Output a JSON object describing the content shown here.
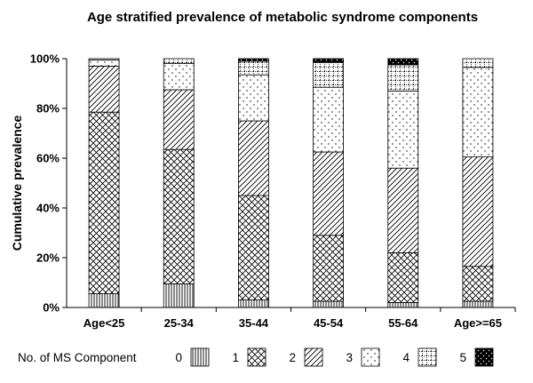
{
  "chart_data": {
    "type": "bar",
    "stacked": true,
    "title": "Age stratified prevalence of metabolic syndrome components",
    "ylabel": "Cumulative prevalence",
    "xlabel": "",
    "ylim": [
      0,
      100
    ],
    "yticks": [
      "0%",
      "20%",
      "40%",
      "60%",
      "80%",
      "100%"
    ],
    "ytick_values": [
      0,
      20,
      40,
      60,
      80,
      100
    ],
    "categories": [
      "Age<25",
      "25-34",
      "35-44",
      "45-54",
      "55-64",
      "Age>=65"
    ],
    "legend_title": "No. of MS Component",
    "legend_position": "bottom",
    "series": [
      {
        "name": "0",
        "pattern": "vertical-lines",
        "values": [
          5.5,
          9.5,
          3,
          2.5,
          2,
          2.5
        ]
      },
      {
        "name": "1",
        "pattern": "crosshatch",
        "values": [
          73,
          54,
          42,
          26.5,
          20,
          14
        ]
      },
      {
        "name": "2",
        "pattern": "diagonal",
        "values": [
          18.5,
          24,
          30,
          33.5,
          34,
          44
        ]
      },
      {
        "name": "3",
        "pattern": "dots",
        "values": [
          2.5,
          10.5,
          18.5,
          26,
          31,
          36
        ]
      },
      {
        "name": "4",
        "pattern": "grid",
        "values": [
          0.5,
          2,
          5.5,
          10,
          10.5,
          3.5
        ]
      },
      {
        "name": "5",
        "pattern": "black-dots",
        "values": [
          0,
          0,
          1,
          1.5,
          2.5,
          0
        ]
      }
    ]
  }
}
